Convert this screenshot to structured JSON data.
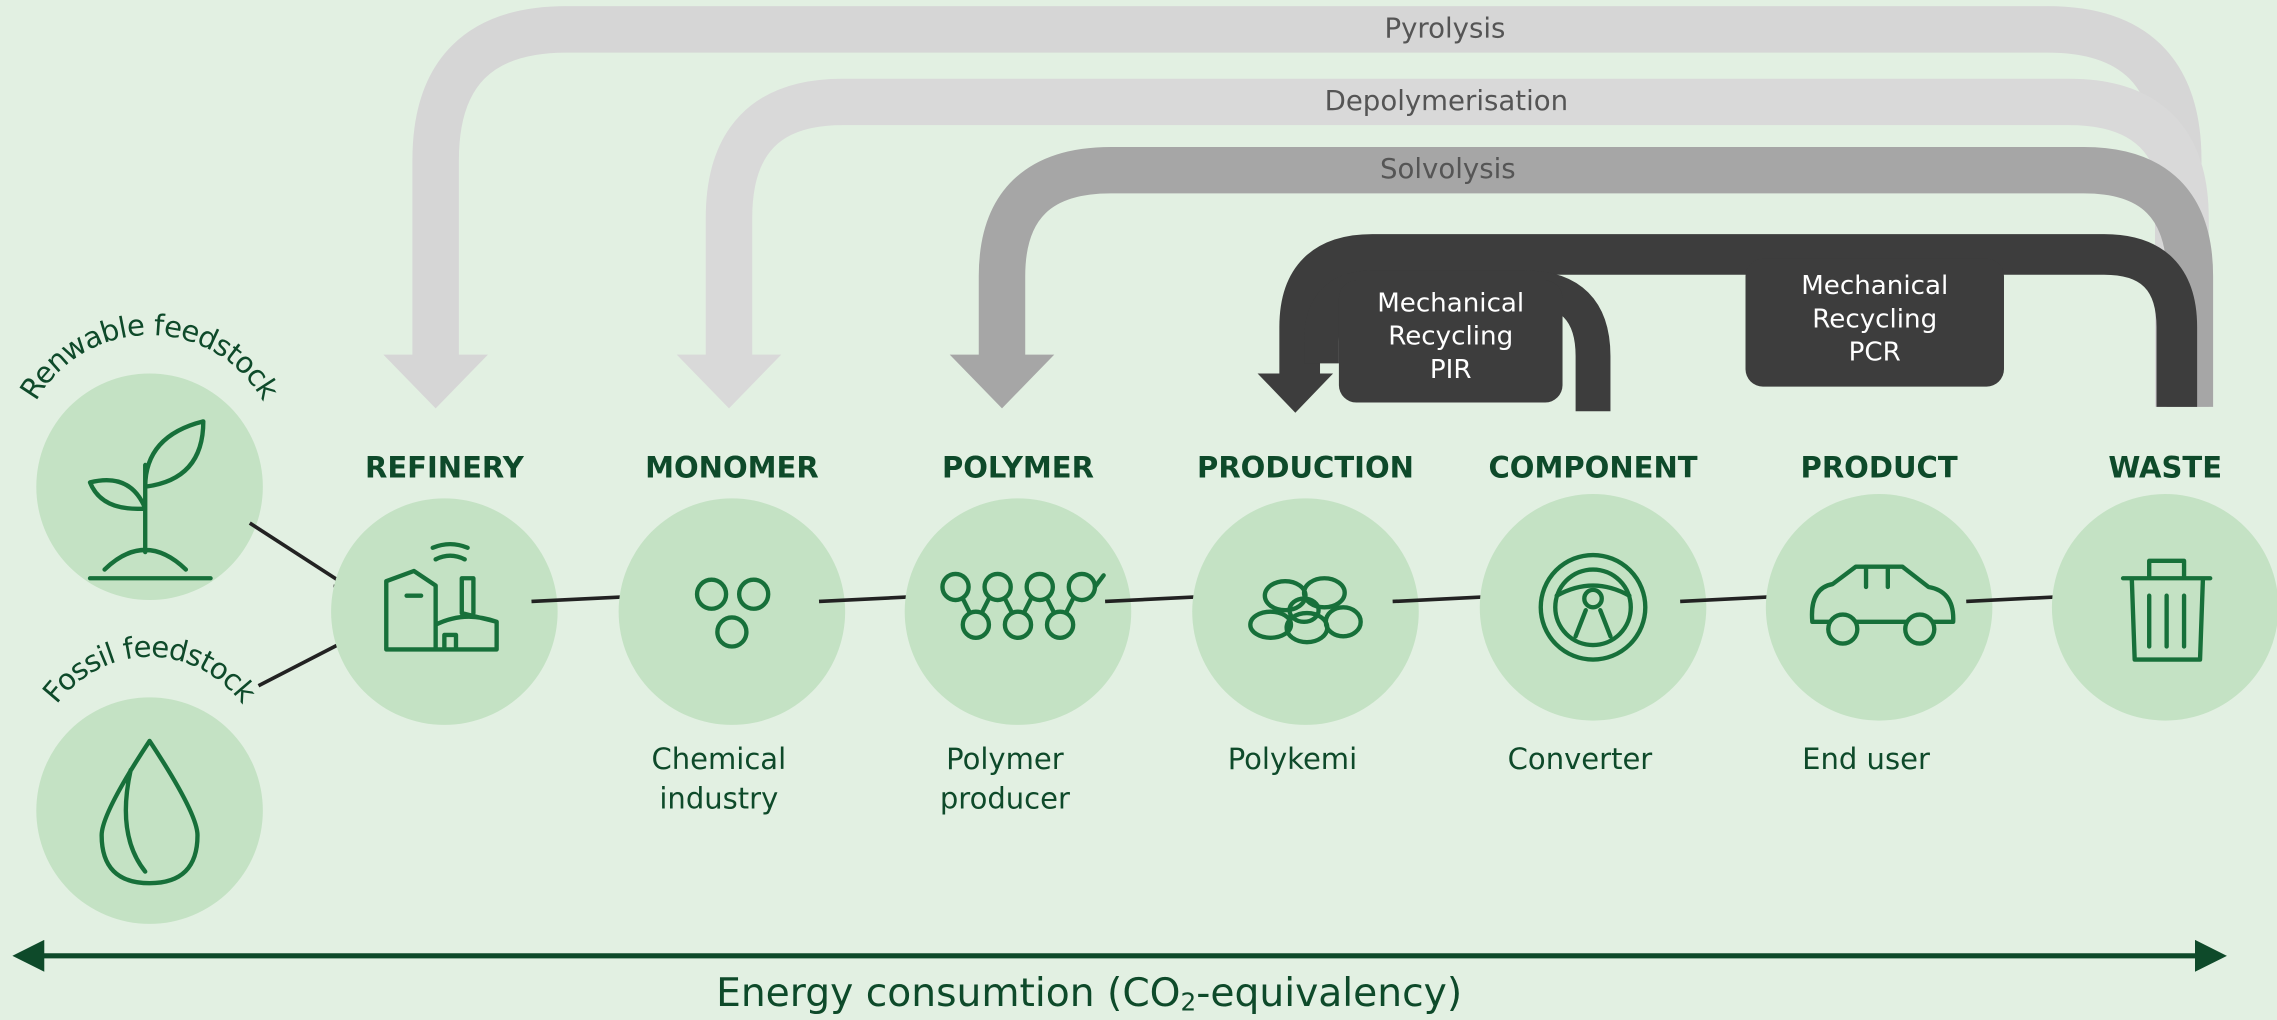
{
  "feedstocks": [
    {
      "label": "Renwable feedstock"
    },
    {
      "label": "Fossil feedstock"
    }
  ],
  "stages": [
    {
      "title": "REFINERY",
      "actor": []
    },
    {
      "title": "MONOMER",
      "actor": [
        "Chemical",
        "industry"
      ]
    },
    {
      "title": "POLYMER",
      "actor": [
        "Polymer",
        "producer"
      ]
    },
    {
      "title": "PRODUCTION",
      "actor": [
        "Polykemi"
      ]
    },
    {
      "title": "COMPONENT",
      "actor": [
        "Converter"
      ]
    },
    {
      "title": "PRODUCT",
      "actor": [
        "End user"
      ]
    },
    {
      "title": "WASTE",
      "actor": []
    }
  ],
  "loops": [
    {
      "label": [
        "Pyrolysis"
      ]
    },
    {
      "label": [
        "Depolymerisation"
      ]
    },
    {
      "label": [
        "Solvolysis"
      ]
    },
    {
      "label": [
        "Mechanical",
        "Recycling",
        "PCR"
      ]
    },
    {
      "label": [
        "Mechanical",
        "Recycling",
        "PIR"
      ]
    }
  ],
  "axis": {
    "parts": [
      "Energy consumtion (CO",
      "2",
      "-equivalency)"
    ]
  }
}
